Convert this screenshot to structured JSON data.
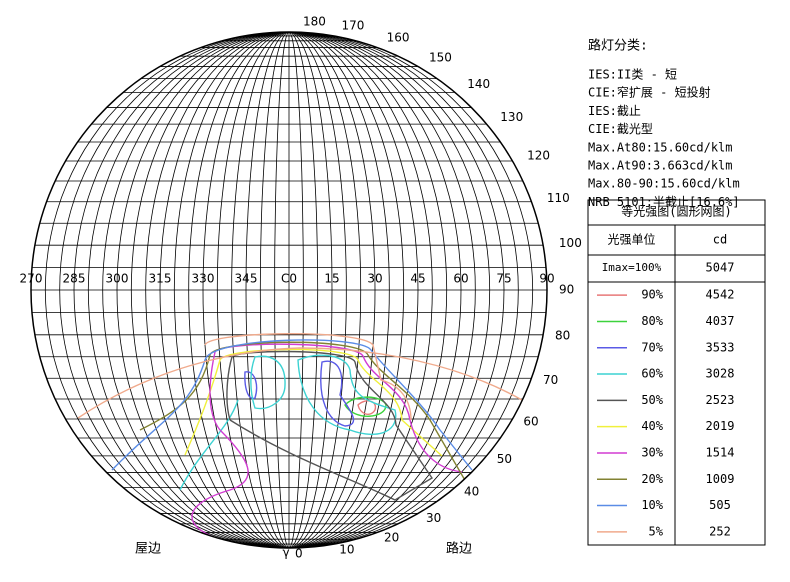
{
  "diagram": {
    "c_plane_labels": [
      "270",
      "285",
      "300",
      "315",
      "330",
      "345",
      "C0",
      "15",
      "30",
      "45",
      "60",
      "75",
      "90"
    ],
    "gamma_upper_labels": [
      "180",
      "170",
      "160",
      "150",
      "140",
      "130",
      "120",
      "110",
      "100"
    ],
    "gamma_lower_labels": [
      "90",
      "80",
      "70",
      "60",
      "50",
      "40",
      "30",
      "20",
      "10",
      "0"
    ],
    "gamma_symbol": "γ",
    "house_side": "屋边",
    "road_side": "路边"
  },
  "info": {
    "title": "路灯分类:",
    "lines": [
      "IES:II类 - 短",
      "CIE:窄扩展 - 短投射",
      "IES:截止",
      "CIE:截光型",
      "Max.At80:15.60cd/klm",
      "Max.At90:3.663cd/klm",
      "Max.80-90:15.60cd/klm",
      "NRB 5101:半截止[16.6%]"
    ]
  },
  "table": {
    "title": "等光强图(圆形网图)",
    "header": [
      "光强单位",
      "cd"
    ],
    "max_row": [
      "Imax=100%",
      "5047"
    ],
    "rows": [
      {
        "level": "90%",
        "cd": "4542",
        "color": "#e87878"
      },
      {
        "level": "80%",
        "cd": "4037",
        "color": "#3cd23c"
      },
      {
        "level": "70%",
        "cd": "3533",
        "color": "#5a5ae6"
      },
      {
        "level": "60%",
        "cd": "3028",
        "color": "#3cd2d2"
      },
      {
        "level": "50%",
        "cd": "2523",
        "color": "#555555"
      },
      {
        "level": "40%",
        "cd": "2019",
        "color": "#f0f03c"
      },
      {
        "level": "30%",
        "cd": "1514",
        "color": "#d23cd2"
      },
      {
        "level": "20%",
        "cd": "1009",
        "color": "#828232"
      },
      {
        "level": "10%",
        "cd": "505",
        "color": "#5a8ce6"
      },
      {
        "level": "5%",
        "cd": "252",
        "color": "#f0aa8c"
      }
    ]
  }
}
